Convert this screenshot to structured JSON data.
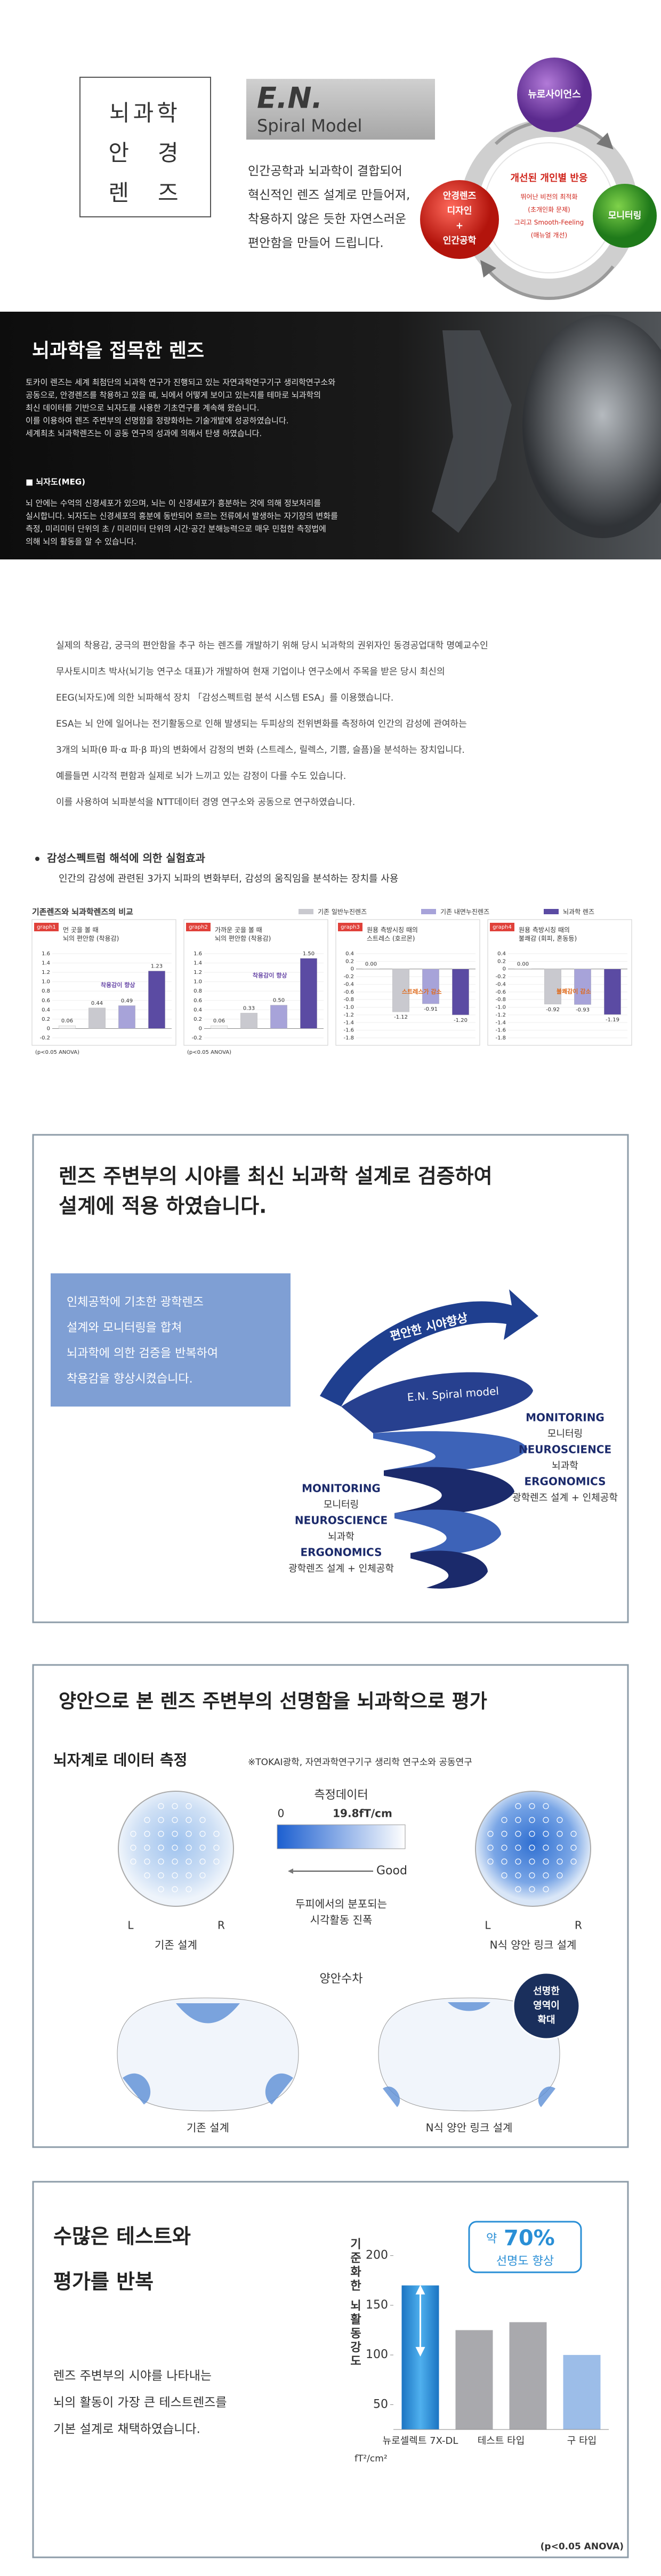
{
  "intro": {
    "title_lines": [
      "뇌과학",
      "안　경",
      "렌　즈"
    ],
    "brand": "E.N.",
    "model": "Spiral Model",
    "lines": [
      "인간공학과 뇌과학이 결합되어",
      "혁신적인 렌즈 설계로 만들어져,",
      "착용하지 않은 듯한 자연스러운",
      "편안함을 만들어 드립니다."
    ],
    "diagram": {
      "top": "뉴로사이언스",
      "left_lines": [
        "안경렌즈",
        "디자인",
        "+",
        "인간공학"
      ],
      "right": "모니터링",
      "center_title": "개선된 개인별 반응",
      "center_lines": [
        "뛰어난 비전의 최적화",
        "(초개인화 문제)",
        "그리고 Smooth-Feeling",
        "(매뉴얼 개선)"
      ]
    }
  },
  "research": {
    "title": "뇌과학을 접목한 렌즈",
    "lines": [
      "토카이 렌즈는 세계 최첨단의 뇌과학 연구가 진행되고 있는 자연과학연구기구 생리학연구소와",
      "공동으로, 안경렌즈를 착용하고 있을 때, 뇌에서 어떻게 보이고 있는지를 테마로 뇌과학의",
      "최신 데이터를 기반으로 뇌자도를 사용한 기초연구를 계속해 왔습니다.",
      "이를 이용하여 렌즈 주변부의 선명함을 정량화하는 기술개발에 성공하였습니다.",
      "세계최초 뇌과학렌즈는 이 공동 연구의 성과에 의해서 탄생 하였습니다."
    ],
    "meg_title": "■ 뇌자도(MEG)",
    "meg_lines": [
      "뇌 안에는 수억의 신경세포가 있으며, 뇌는 이 신경세포가 흥분하는 것에 의해 정보처리를",
      "실시합니다. 뇌자도는 신경세포의 흥분에 동반되어 흐르는 전류에서 발생하는 자기장의 변화를",
      "측정, 미리미터 단위의 초 / 미리미터 단위의 시간·공간 분해능력으로 매우 민첩한 측정법에",
      "의해 뇌의 활동을 알 수 있습니다."
    ]
  },
  "esa": {
    "lines": [
      "실제의 착용감, 궁극의 편안함을 추구 하는 렌즈를 개발하기 위해 당시 뇌과학의 권위자인 동경공업대학 명예교수인",
      "무사토시미츠 박사(뇌기능 연구소 대표)가 개발하여 현재 기업이나 연구소에서 주목을 받은 당시 최신의",
      "EEG(뇌자도)에 의한 뇌파해석 장치 「감성스펙트럼 분석 시스템 ESA」를 이용했습니다.",
      "ESA는 뇌 안에 일어나는 전기활동으로 인해 발생되는 두피상의 전위변화를 측정하여 인간의 감성에 관여하는",
      "3개의 뇌파(θ 파·α 파·β 파)의 변화에서 감정의 변화 (스트레스, 릴렉스, 기쁨, 슬픔)을 분석하는 장치입니다.",
      "예를들면 시각적 편함과 실제로 뇌가 느끼고 있는 감정이 다를 수도 있습니다.",
      "이를 사용하여 뇌파분석을 NTT데이터 경영 연구소와 공동으로 연구하였습니다."
    ]
  },
  "effects": {
    "title": "감성스펙트럼 해석에 의한 실험효과",
    "subtitle": "인간의 감성에 관련된 3가지 뇌파의 변화부터, 감성의 움직임을 분석하는 장치를 사용",
    "chart_title": "기존렌즈와 뇌과학렌즈의 비교",
    "legend": [
      {
        "name": "기존 일반누진렌즈",
        "color": "#c9c9cf"
      },
      {
        "name": "기존 내면누진렌즈",
        "color": "#a7a3d9"
      },
      {
        "name": "뇌과학 렌즈",
        "color": "#5b4ba3"
      }
    ],
    "charts": [
      {
        "type": "bar",
        "tag": "graph1",
        "title_lines": [
          "먼 곳을 볼 때",
          "뇌의 편안함 (착용감)"
        ],
        "values": [
          0.06,
          0.44,
          0.49,
          1.23
        ],
        "value_labels": [
          "0.06",
          "0.44",
          "0.49",
          "1.23"
        ],
        "colors": [
          "#f4f4f4",
          "#c9c9cf",
          "#a7a3d9",
          "#5b4ba3"
        ],
        "ylim": [
          -0.2,
          1.6
        ],
        "yticks": [
          -0.2,
          0,
          0.2,
          0.4,
          0.6,
          0.8,
          {
            "value": 1,
            "label": "1.0"
          },
          1.2,
          1.4,
          1.6
        ],
        "annotation": "착용감이 향상",
        "note": "(p<0.05 ANOVA)"
      },
      {
        "type": "bar",
        "tag": "graph2",
        "title_lines": [
          "가까운 곳을 볼 때",
          "뇌의 편안함 (착용감)"
        ],
        "values": [
          0.06,
          0.33,
          0.5,
          1.5
        ],
        "value_labels": [
          "0.06",
          "0.33",
          "0.50",
          "1.50"
        ],
        "colors": [
          "#f4f4f4",
          "#c9c9cf",
          "#a7a3d9",
          "#5b4ba3"
        ],
        "ylim": [
          -0.2,
          1.6
        ],
        "yticks": [
          -0.2,
          0,
          0.2,
          0.4,
          0.6,
          0.8,
          {
            "value": 1,
            "label": "1.0"
          },
          1.2,
          1.4,
          1.6
        ],
        "annotation": "착용감이 향상",
        "note": "(p<0.05 ANOVA)"
      },
      {
        "type": "bar",
        "tag": "graph3",
        "title_lines": [
          "원용 측방시칭 때의",
          "스트레스 (호르몬)"
        ],
        "values": [
          0,
          -1.12,
          -0.91,
          -1.2
        ],
        "value_labels": [
          "0.00",
          "-1.12",
          "-0.91",
          "-1.20"
        ],
        "colors": [
          "#f4f4f4",
          "#c9c9cf",
          "#a7a3d9",
          "#5b4ba3"
        ],
        "ylim": [
          -1.8,
          0.4
        ],
        "yticks": [
          -1.8,
          -1.6,
          -1.4,
          -1.2,
          {
            "value": -1,
            "label": "-1.0"
          },
          -0.8,
          -0.6,
          -0.4,
          -0.2,
          0,
          0.2,
          0.4
        ],
        "annotation": "스트레스가 감소"
      },
      {
        "type": "bar",
        "tag": "graph4",
        "title_lines": [
          "원용 측방시칭 때의",
          "불쾌감 (회피, 혼동등)"
        ],
        "values": [
          0,
          -0.92,
          -0.93,
          -1.19
        ],
        "value_labels": [
          "0.00",
          "-0.92",
          "-0.93",
          "-1.19"
        ],
        "colors": [
          "#f4f4f4",
          "#c9c9cf",
          "#a7a3d9",
          "#5b4ba3"
        ],
        "ylim": [
          -1.8,
          0.4
        ],
        "yticks": [
          -1.8,
          -1.6,
          -1.4,
          -1.2,
          {
            "value": -1,
            "label": "-1.0"
          },
          -0.8,
          -0.6,
          -0.4,
          -0.2,
          0,
          0.2,
          0.4
        ],
        "annotation": "불쾌감이 감소"
      }
    ]
  },
  "spiral": {
    "title_lines": [
      "렌즈 주변부의 시야를 최신 뇌과학 설계로 검증하여",
      "설계에 적용 하였습니다."
    ],
    "box_lines": [
      "인체공학에 기초한 광학렌즈",
      "설계와 모니터링을 합쳐",
      "뇌과학에 의한 검증을 반복하여",
      "착용감을 향상시켰습니다."
    ],
    "arrow": "편안한 시야향상",
    "band": "E.N. Spiral model",
    "labels_right": [
      "MONITORING",
      "모니터링",
      "NEUROSCIENCE",
      "뇌과학",
      "ERGONOMICS",
      "광학렌즈 설계 + 인체공학"
    ],
    "labels_left": [
      "MONITORING",
      "모니터링",
      "NEUROSCIENCE",
      "뇌과학",
      "ERGONOMICS",
      "광학렌즈 설계 + 인체공학"
    ]
  },
  "binocular": {
    "title": "양안으로 본 렌즈 주변부의 선명함을 뇌과학으로 평가",
    "subtitle": "뇌자계로 데이터 측정",
    "note": "※TOKAI광학, 자연과학연구기구 생리학 연구소와 공동연구",
    "scale_title": "측정데이터",
    "scale_min": 0,
    "scale_max": "19.8fT/cm",
    "good": "Good",
    "caption_lines": [
      "두피에서의 분포되는",
      "시각활동 진폭"
    ],
    "left_label": "L",
    "right_label": "R",
    "head_left": "기존 설계",
    "head_right": "N식 양안 링크 설계",
    "aberration": "양안수차",
    "lens_left": "기존 설계",
    "lens_right": "N식 양안 링크 설계",
    "callout_lines": [
      "선명한",
      "영역이",
      "확대"
    ]
  },
  "tests": {
    "title_lines": [
      "수많은 테스트와",
      "평가를 반복"
    ],
    "lines": [
      "렌즈 주변부의 시야를 나타내는",
      "뇌의 활동이 가장 큰 테스트렌즈를",
      "기본 설계로 채택하였습니다."
    ],
    "chart": {
      "type": "bar",
      "y_label": "기준화한 뇌활동강도",
      "unit": "fT²/cm²",
      "categories": [
        "뉴로셀렉트 7X-DL",
        "테스트 타입",
        null,
        "구 타입"
      ],
      "values": [
        170,
        125,
        133,
        100
      ],
      "colors": [
        "#2a8fd6",
        "#a9a9ad",
        "#a9a9ad",
        "#9cbde8"
      ],
      "ylim": [
        25,
        210
      ],
      "yticks": [
        50,
        100,
        150,
        200
      ],
      "callout_prefix": "약",
      "callout_value": "70%",
      "callout_text": "선명도 향상",
      "note": "(p<0.05 ANOVA)"
    }
  }
}
